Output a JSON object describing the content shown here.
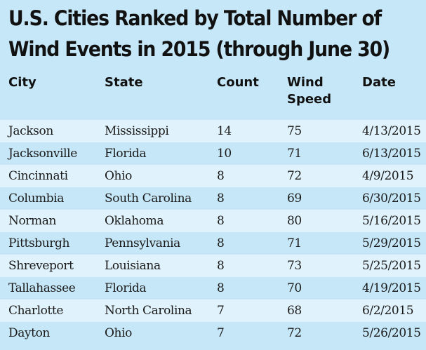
{
  "title_lines": [
    "U.S. Cities Ranked by Total Number of",
    "Wind Events in 2015 (through June 30)"
  ],
  "columns": [
    "City",
    "State",
    "Count",
    "Wind Speed",
    "Date"
  ],
  "rows": [
    [
      "Jackson",
      "Mississippi",
      "14",
      "75",
      "4/13/2015"
    ],
    [
      "Jacksonville",
      "Florida",
      "10",
      "71",
      "6/13/2015"
    ],
    [
      "Cincinnati",
      "Ohio",
      "8",
      "72",
      "4/9/2015"
    ],
    [
      "Columbia",
      "South Carolina",
      "8",
      "69",
      "6/30/2015"
    ],
    [
      "Norman",
      "Oklahoma",
      "8",
      "80",
      "5/16/2015"
    ],
    [
      "Pittsburgh",
      "Pennsylvania",
      "8",
      "71",
      "5/29/2015"
    ],
    [
      "Shreveport",
      "Louisiana",
      "8",
      "73",
      "5/25/2015"
    ],
    [
      "Tallahassee",
      "Florida",
      "8",
      "70",
      "4/19/2015"
    ],
    [
      "Charlotte",
      "North Carolina",
      "7",
      "68",
      "6/2/2015"
    ],
    [
      "Dayton",
      "Ohio",
      "7",
      "72",
      "5/26/2015"
    ]
  ],
  "colors": {
    "background": "#c6e7f7",
    "row_alt": "#e0f2fc"
  }
}
